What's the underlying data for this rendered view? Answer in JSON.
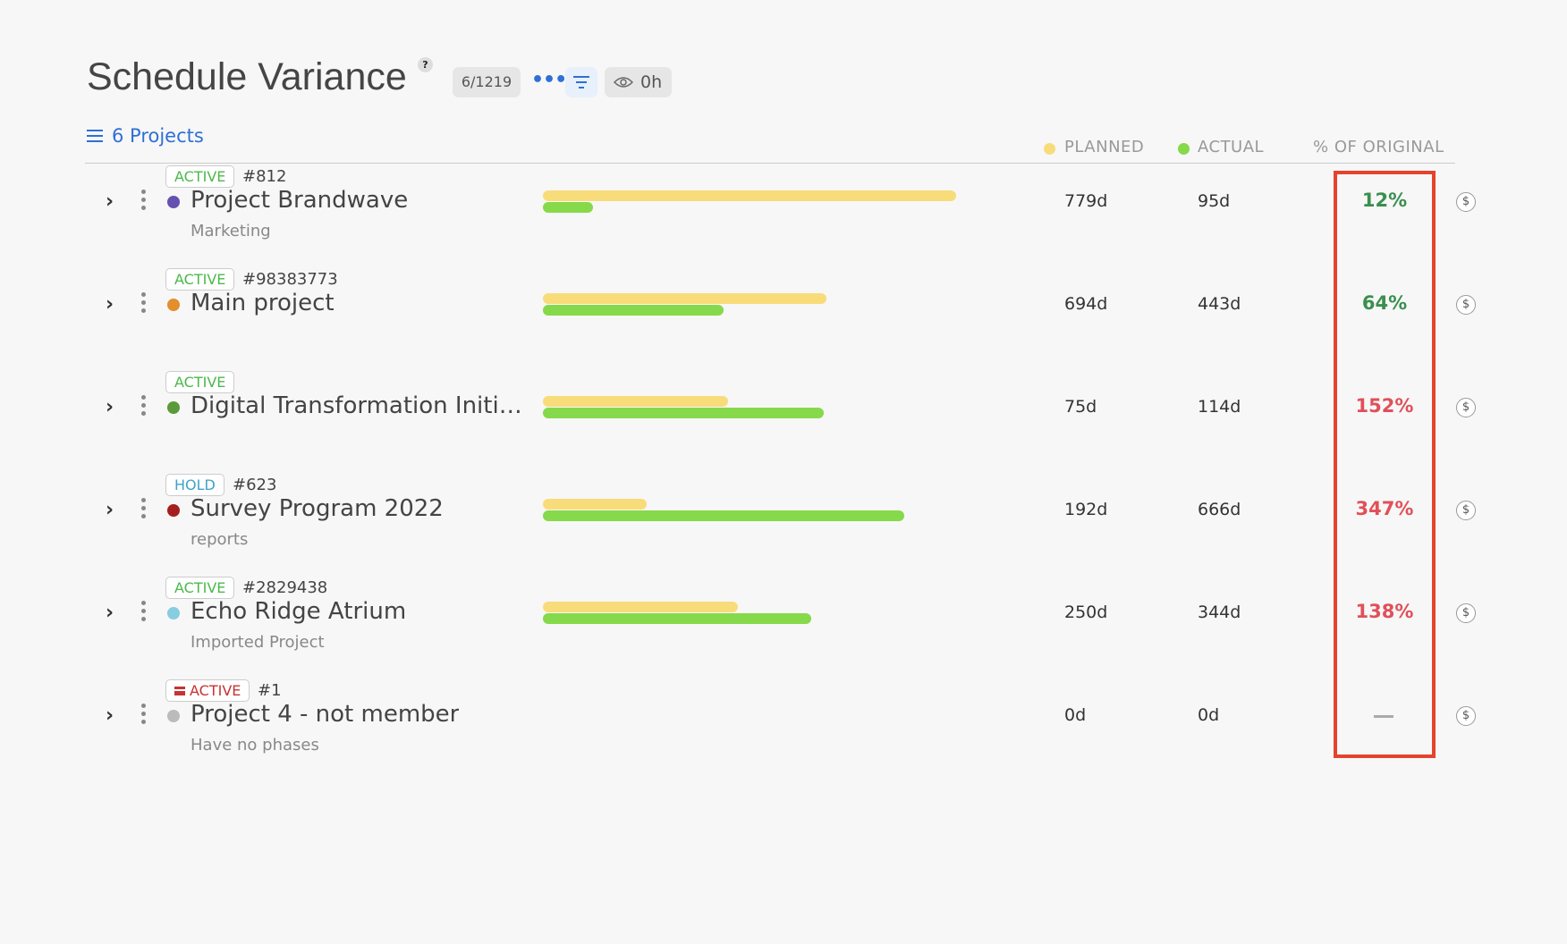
{
  "header": {
    "title": "Schedule Variance",
    "help": "?",
    "count": "6/1219",
    "more": "•••",
    "eye_value": "0h"
  },
  "projects_link": "6 Projects",
  "columns": {
    "planned": "PLANNED",
    "actual": "ACTUAL",
    "percent": "% OF ORIGINAL"
  },
  "colors": {
    "planned": "#f9dc7a",
    "actual": "#86d94a",
    "good": "#3a8f4f",
    "bad": "#e0505a",
    "highlight": "#e5432d"
  },
  "rows": [
    {
      "status": "ACTIVE",
      "status_color": "#4cb84c",
      "archived": false,
      "id": "#812",
      "name": "Project Brandwave",
      "subtitle": "Marketing",
      "dot": "#6650b0",
      "planned_days": 779,
      "actual_days": 95,
      "planned": "779d",
      "actual": "95d",
      "percent": "12%",
      "percent_tone": "good"
    },
    {
      "status": "ACTIVE",
      "status_color": "#4cb84c",
      "archived": false,
      "id": "#98383773",
      "name": "Main project",
      "subtitle": "",
      "dot": "#e38f2d",
      "planned_days": 694,
      "actual_days": 443,
      "planned": "694d",
      "actual": "443d",
      "percent": "64%",
      "percent_tone": "good"
    },
    {
      "status": "ACTIVE",
      "status_color": "#4cb84c",
      "archived": false,
      "id": "",
      "name": "Digital Transformation Initia...",
      "subtitle": "",
      "dot": "#5a9a3a",
      "planned_days": 75,
      "actual_days": 114,
      "planned": "75d",
      "actual": "114d",
      "percent": "152%",
      "percent_tone": "bad"
    },
    {
      "status": "HOLD",
      "status_color": "#3fa3c8",
      "archived": false,
      "id": "#623",
      "name": "Survey Program 2022",
      "subtitle": "reports",
      "dot": "#a51f1f",
      "planned_days": 192,
      "actual_days": 666,
      "planned": "192d",
      "actual": "666d",
      "percent": "347%",
      "percent_tone": "bad"
    },
    {
      "status": "ACTIVE",
      "status_color": "#4cb84c",
      "archived": false,
      "id": "#2829438",
      "name": "Echo Ridge Atrium",
      "subtitle": "Imported Project",
      "dot": "#86cde0",
      "planned_days": 250,
      "actual_days": 344,
      "planned": "250d",
      "actual": "344d",
      "percent": "138%",
      "percent_tone": "bad"
    },
    {
      "status": "ACTIVE",
      "status_color": "#c83232",
      "archived": true,
      "id": "#1",
      "name": "Project 4 - not member",
      "subtitle": "Have no phases",
      "dot": "#bbbbbb",
      "planned_days": 0,
      "actual_days": 0,
      "planned": "0d",
      "actual": "0d",
      "percent": "",
      "percent_tone": "none"
    }
  ]
}
